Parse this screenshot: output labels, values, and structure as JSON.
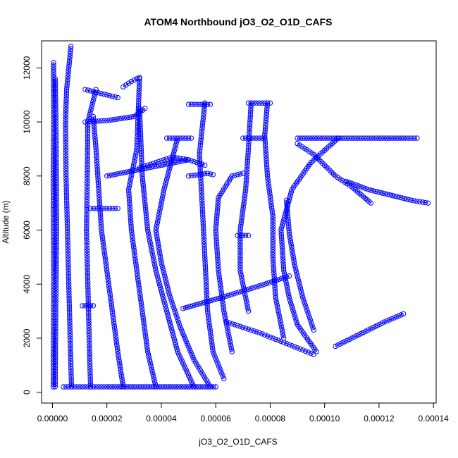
{
  "chart_data": {
    "type": "scatter",
    "title": "ATOM4 Northbound jO3_O2_O1D_CAFS",
    "xlabel": "jO3_O2_O1D_CAFS",
    "ylabel": "Altitude (m)",
    "xlim": [
      -4e-06,
      0.000141
    ],
    "ylim": [
      -400,
      13000
    ],
    "x_ticks": [
      0,
      2e-05,
      4e-05,
      6e-05,
      8e-05,
      0.0001,
      0.00012,
      0.00014
    ],
    "x_tick_labels": [
      "0.00000",
      "0.00002",
      "0.00004",
      "0.00006",
      "0.00008",
      "0.00010",
      "0.00012",
      "0.00014"
    ],
    "y_ticks": [
      0,
      2000,
      4000,
      6000,
      8000,
      10000,
      12000
    ],
    "y_tick_labels": [
      "0",
      "2000",
      "4000",
      "6000",
      "8000",
      "10000",
      "12000"
    ],
    "grid": false,
    "legend": "none",
    "marker": "open-circle",
    "color": "#0000ff",
    "series": [
      {
        "x": [
          3e-07,
          4e-07,
          5e-07,
          4e-07,
          3e-07,
          5e-07,
          4e-07
        ],
        "y": [
          200,
          2000,
          4000,
          6000,
          8000,
          10000,
          12200
        ]
      },
      {
        "x": [
          1e-06,
          1.2e-06,
          1.5e-06,
          1.4e-06,
          1.2e-06,
          1e-06
        ],
        "y": [
          200,
          3000,
          6000,
          8500,
          10500,
          11600
        ]
      },
      {
        "x": [
          7e-06,
          6.5e-06,
          6e-06,
          5.5e-06,
          5e-06,
          4.8e-06,
          5.2e-06,
          6.8e-06
        ],
        "y": [
          200,
          2000,
          4000,
          6000,
          8000,
          10000,
          11200,
          12800
        ]
      },
      {
        "x": [
          1.4e-05,
          1.35e-05,
          1.3e-05,
          1.25e-05,
          1.28e-05,
          1.3e-05,
          1.6e-05
        ],
        "y": [
          200,
          2000,
          4000,
          6000,
          8000,
          10000,
          11200
        ]
      },
      {
        "x": [
          2.6e-05,
          2.4e-05,
          2.2e-05,
          2e-05,
          1.8e-05,
          1.7e-05,
          1.6e-05,
          1.5e-05
        ],
        "y": [
          200,
          1500,
          3000,
          4500,
          6000,
          7500,
          9000,
          10200
        ]
      },
      {
        "x": [
          3.8e-05,
          3.5e-05,
          3.3e-05,
          3.1e-05,
          2.9e-05,
          2.8e-05,
          3.1e-05,
          3.2e-05
        ],
        "y": [
          200,
          1500,
          3000,
          4500,
          6000,
          7500,
          9000,
          11600
        ]
      },
      {
        "x": [
          5.2e-05,
          4.6e-05,
          4.2e-05,
          3.8e-05,
          3.5e-05,
          3.3e-05,
          3.2e-05
        ],
        "y": [
          200,
          1500,
          3000,
          4500,
          6000,
          8000,
          10500
        ]
      },
      {
        "x": [
          5.8e-05,
          5.2e-05,
          4.7e-05,
          4.3e-05,
          4e-05,
          3.8e-05,
          4.1e-05,
          4.6e-05
        ],
        "y": [
          200,
          1200,
          2400,
          3600,
          4800,
          6000,
          7500,
          9400
        ]
      },
      {
        "x": [
          6.3e-05,
          5.9e-05,
          5.7e-05,
          5.6e-05,
          5.5e-05,
          5.4e-05,
          5.6e-05
        ],
        "y": [
          500,
          1500,
          3000,
          5000,
          7000,
          8800,
          10700
        ]
      },
      {
        "x": [
          6.6e-05,
          6.3e-05,
          6.1e-05,
          6e-05,
          6.1e-05,
          6.6e-05,
          7e-05
        ],
        "y": [
          1500,
          3000,
          4500,
          6000,
          7200,
          8000,
          8100
        ]
      },
      {
        "x": [
          7.2e-05,
          6.9e-05,
          6.9e-05,
          7.1e-05,
          7.2e-05,
          7.3e-05
        ],
        "y": [
          3000,
          4500,
          6000,
          7500,
          9000,
          10700
        ]
      },
      {
        "x": [
          8.5e-05,
          8.2e-05,
          8.1e-05,
          8.1e-05,
          7.9e-05,
          7.8e-05,
          7.9e-05
        ],
        "y": [
          2000,
          3500,
          5000,
          6500,
          8000,
          9500,
          10700
        ]
      },
      {
        "x": [
          9.7e-05,
          9e-05,
          8.7e-05,
          8.5e-05,
          8.4e-05,
          8.8e-05,
          9.5e-05,
          0.000105
        ],
        "y": [
          1500,
          2500,
          3500,
          4500,
          6000,
          7500,
          8500,
          9400
        ]
      },
      {
        "x": [
          9.6e-05,
          9.2e-05,
          8.9e-05,
          8.7e-05,
          8.6e-05
        ],
        "y": [
          2300,
          3500,
          4700,
          5900,
          7100
        ]
      },
      {
        "x": [
          0.000117,
          0.00011,
          0.000104,
          0.0001,
          9.6e-05,
          9e-05
        ],
        "y": [
          7000,
          7600,
          8000,
          8400,
          8800,
          9200
        ]
      },
      {
        "x": [
          0.000129,
          0.000122,
          0.000116,
          0.00011,
          0.000104
        ],
        "y": [
          2900,
          2600,
          2300,
          2000,
          1700
        ]
      },
      {
        "x": [
          0.000138,
          0.000132,
          0.000124,
          0.000116,
          0.000108
        ],
        "y": [
          7000,
          7100,
          7300,
          7500,
          7800
        ]
      },
      {
        "x": [
          9.6e-05,
          9.1e-05,
          8.6e-05,
          8.1e-05,
          7.6e-05,
          7e-05,
          6.4e-05
        ],
        "y": [
          1400,
          1600,
          1800,
          2000,
          2200,
          2400,
          2600
        ]
      },
      {
        "x": [
          8.7e-05,
          7.5e-05,
          6.2e-05,
          4.8e-05
        ],
        "y": [
          4300,
          3900,
          3500,
          3100
        ]
      },
      {
        "x": [
          4e-06,
          8e-06,
          1.3e-05,
          2e-05,
          3e-05,
          4e-05,
          5e-05,
          6e-05
        ],
        "y": [
          200,
          200,
          200,
          200,
          200,
          200,
          200,
          200
        ]
      },
      {
        "x": [
          1.2e-05,
          2e-05,
          3e-05,
          3.4e-05
        ],
        "y": [
          10000,
          10050,
          10200,
          10500
        ]
      },
      {
        "x": [
          1.2e-05,
          1.6e-05,
          2e-05,
          2.4e-05
        ],
        "y": [
          11200,
          11100,
          11000,
          10900
        ]
      },
      {
        "x": [
          2.6e-05,
          2.9e-05,
          3.2e-05
        ],
        "y": [
          11300,
          11500,
          11650
        ]
      },
      {
        "x": [
          2e-05,
          3e-05,
          4e-05,
          5e-05
        ],
        "y": [
          8000,
          8200,
          8400,
          8600
        ]
      },
      {
        "x": [
          3.2e-05,
          3.8e-05,
          4.4e-05,
          5e-05,
          5.6e-05
        ],
        "y": [
          8300,
          8500,
          8700,
          8600,
          8400
        ]
      },
      {
        "x": [
          4.2e-05,
          4.6e-05,
          5.1e-05
        ],
        "y": [
          9400,
          9400,
          9400
        ]
      },
      {
        "x": [
          5e-05,
          5.4e-05,
          5.8e-05
        ],
        "y": [
          10650,
          10650,
          10650
        ]
      },
      {
        "x": [
          7.2e-05,
          7.6e-05,
          8e-05
        ],
        "y": [
          10700,
          10700,
          10700
        ]
      },
      {
        "x": [
          7e-05,
          7.4e-05,
          7.8e-05
        ],
        "y": [
          9400,
          9400,
          9400
        ]
      },
      {
        "x": [
          9e-05,
          0.0001,
          0.00011,
          0.00012,
          0.00013,
          0.000134
        ],
        "y": [
          9400,
          9400,
          9400,
          9400,
          9400,
          9400
        ]
      },
      {
        "x": [
          1.4e-05,
          2e-05,
          2.4e-05
        ],
        "y": [
          6800,
          6800,
          6800
        ]
      },
      {
        "x": [
          6.8e-05,
          7e-05,
          7.2e-05
        ],
        "y": [
          5800,
          5800,
          5800
        ]
      },
      {
        "x": [
          1.1e-05,
          1.3e-05,
          1.5e-05
        ],
        "y": [
          3200,
          3200,
          3200
        ]
      },
      {
        "x": [
          5e-05,
          5.4e-05,
          5.7e-05,
          5.9e-05
        ],
        "y": [
          8000,
          8050,
          8100,
          8050
        ]
      }
    ]
  }
}
